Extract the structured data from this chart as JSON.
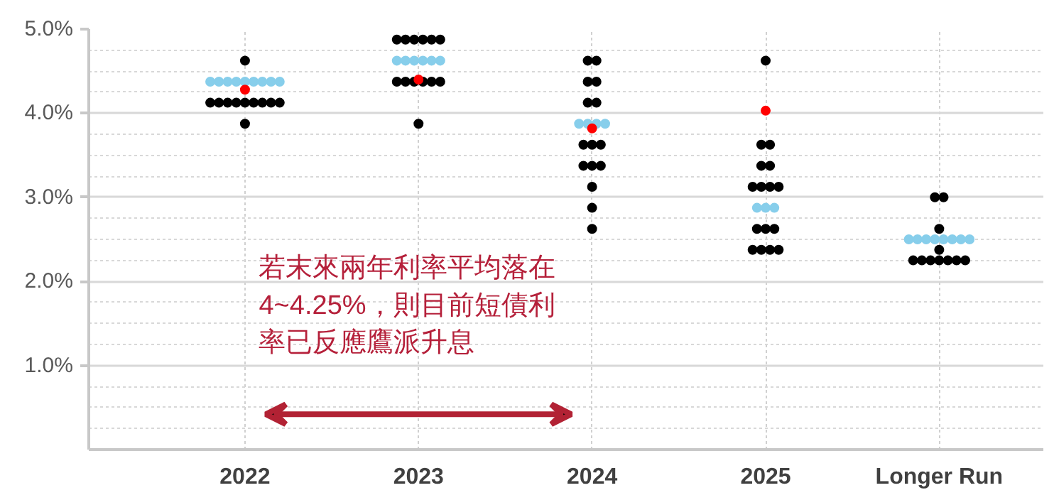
{
  "chart_data": {
    "type": "scatter",
    "xlim": [
      2021.1,
      2026.6
    ],
    "xticks": [
      2022,
      2023,
      2024,
      2025,
      {
        "value": 2026,
        "label": "Longer Run"
      }
    ],
    "ylim": [
      0,
      5
    ],
    "yticks": [
      {
        "value": 1,
        "label": "1.0%"
      },
      {
        "value": 2,
        "label": "2.0%"
      },
      {
        "value": 3,
        "label": "3.0%"
      },
      {
        "value": 4,
        "label": "4.0%"
      },
      {
        "value": 5,
        "label": "5.0%"
      }
    ],
    "grid": true,
    "marker": "circle",
    "series": [
      {
        "color": "#000000",
        "x": [
          2022,
          2021.8,
          2021.85,
          2021.9,
          2021.95,
          2022,
          2022.05,
          2022.1,
          2022.15,
          2022.2,
          2022,
          2022.875,
          2022.925,
          2022.975,
          2023.025,
          2023.075,
          2023.125,
          2022.875,
          2022.925,
          2022.975,
          2023.025,
          2023.075,
          2023.125,
          2023,
          2023.975,
          2024.025,
          2023.975,
          2024.025,
          2023.975,
          2024.025,
          2023.95,
          2024,
          2024.05,
          2023.95,
          2024,
          2024.05,
          2024,
          2024,
          2024,
          2025,
          2024.975,
          2025.025,
          2024.975,
          2025.025,
          2024.925,
          2024.975,
          2025.025,
          2025.075,
          2024.95,
          2025,
          2025.05,
          2024.925,
          2024.975,
          2025.025,
          2025.075,
          2025.975,
          2026.025,
          2026,
          2026,
          2025.85,
          2025.9,
          2025.95,
          2026,
          2026.05,
          2026.1,
          2026.15
        ],
        "values": [
          4.625,
          4.125,
          4.125,
          4.125,
          4.125,
          4.125,
          4.125,
          4.125,
          4.125,
          4.125,
          3.875,
          4.875,
          4.875,
          4.875,
          4.875,
          4.875,
          4.875,
          4.375,
          4.375,
          4.375,
          4.375,
          4.375,
          4.375,
          3.875,
          4.625,
          4.625,
          4.375,
          4.375,
          4.125,
          4.125,
          3.625,
          3.625,
          3.625,
          3.375,
          3.375,
          3.375,
          3.125,
          2.875,
          2.625,
          4.625,
          3.625,
          3.625,
          3.375,
          3.375,
          3.125,
          3.125,
          3.125,
          3.125,
          2.625,
          2.625,
          2.625,
          2.375,
          2.375,
          2.375,
          2.375,
          3.0,
          3.0,
          2.625,
          2.375,
          2.25,
          2.25,
          2.25,
          2.25,
          2.25,
          2.25,
          2.25
        ]
      },
      {
        "color": "#87ceeb",
        "x": [
          2021.8,
          2021.85,
          2021.9,
          2021.95,
          2022,
          2022.05,
          2022.1,
          2022.15,
          2022.2,
          2022.875,
          2022.925,
          2022.975,
          2023.025,
          2023.075,
          2023.125,
          2023.925,
          2023.975,
          2024.025,
          2024.075,
          2024.95,
          2025,
          2025.05,
          2025.825,
          2025.875,
          2025.925,
          2025.975,
          2026.025,
          2026.075,
          2026.125,
          2026.175
        ],
        "values": [
          4.375,
          4.375,
          4.375,
          4.375,
          4.375,
          4.375,
          4.375,
          4.375,
          4.375,
          4.625,
          4.625,
          4.625,
          4.625,
          4.625,
          4.625,
          3.875,
          3.875,
          3.875,
          3.875,
          2.875,
          2.875,
          2.875,
          2.5,
          2.5,
          2.5,
          2.5,
          2.5,
          2.5,
          2.5,
          2.5
        ]
      },
      {
        "color": "#ff0000",
        "x": [
          2022,
          2023,
          2024,
          2025
        ],
        "values": [
          4.28,
          4.4,
          3.82,
          4.03
        ]
      }
    ],
    "annotations": [
      "若末來兩年利率平均落在4~4.25%，則目前短債利率已反應鷹派升息"
    ]
  }
}
